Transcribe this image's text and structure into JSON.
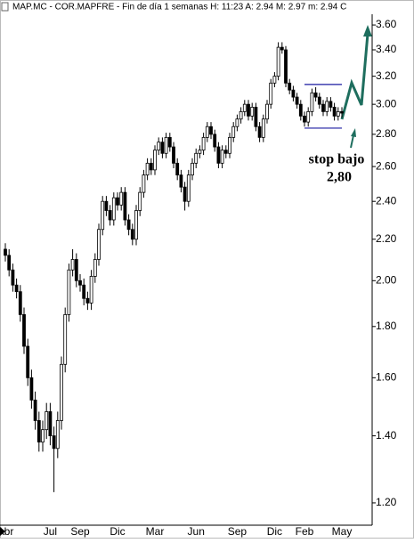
{
  "chart_data": {
    "type": "candlestick",
    "title": "MAP.MC - COR.MAPFRE - Fin de día 1 semanas  H: 11:23  A: 2.94  M: 2.97  m: 2.94  C",
    "log_scale": true,
    "grid": false,
    "ylim": [
      1.14,
      3.69
    ],
    "yticks": [
      {
        "value": 1.2,
        "label": "1.20"
      },
      {
        "value": 1.4,
        "label": "1.40"
      },
      {
        "value": 1.6,
        "label": "1.60"
      },
      {
        "value": 1.8,
        "label": "1.80"
      },
      {
        "value": 2.0,
        "label": "2.00"
      },
      {
        "value": 2.2,
        "label": "2.20"
      },
      {
        "value": 2.4,
        "label": "2.40"
      },
      {
        "value": 2.6,
        "label": "2.60"
      },
      {
        "value": 2.8,
        "label": "2.80"
      },
      {
        "value": 3.0,
        "label": "3.00"
      },
      {
        "value": 3.2,
        "label": "3.20"
      },
      {
        "value": 3.4,
        "label": "3.40"
      },
      {
        "value": 3.6,
        "label": "3.60"
      }
    ],
    "categories": [
      "Abr",
      null,
      null,
      null,
      null,
      null,
      null,
      null,
      null,
      null,
      null,
      null,
      "Jul",
      null,
      null,
      null,
      null,
      null,
      null,
      null,
      "Sep",
      null,
      null,
      null,
      null,
      null,
      null,
      null,
      null,
      null,
      "Dic",
      null,
      null,
      null,
      null,
      null,
      null,
      null,
      null,
      null,
      "Mar",
      null,
      null,
      null,
      null,
      null,
      null,
      null,
      null,
      null,
      null,
      "Jun",
      null,
      null,
      null,
      null,
      null,
      null,
      null,
      null,
      null,
      null,
      "Sep",
      null,
      null,
      null,
      null,
      null,
      null,
      null,
      null,
      null,
      "Dic",
      null,
      null,
      null,
      null,
      null,
      null,
      null,
      "Feb",
      null,
      null,
      null,
      null,
      null,
      null,
      null,
      null,
      null,
      "May"
    ],
    "open": [
      2.15,
      2.12,
      2.05,
      1.98,
      1.95,
      1.85,
      1.72,
      1.6,
      1.52,
      1.45,
      1.38,
      1.42,
      1.48,
      1.4,
      1.36,
      1.45,
      1.65,
      1.85,
      2.05,
      2.1,
      2.0,
      1.98,
      1.92,
      1.9,
      2.02,
      2.1,
      2.25,
      2.4,
      2.35,
      2.3,
      2.42,
      2.38,
      2.45,
      2.3,
      2.25,
      2.2,
      2.35,
      2.45,
      2.55,
      2.62,
      2.58,
      2.7,
      2.75,
      2.68,
      2.78,
      2.72,
      2.62,
      2.55,
      2.48,
      2.4,
      2.55,
      2.62,
      2.68,
      2.7,
      2.78,
      2.85,
      2.8,
      2.72,
      2.62,
      2.7,
      2.68,
      2.78,
      2.85,
      2.9,
      2.95,
      3.0,
      2.92,
      2.98,
      2.85,
      2.78,
      2.9,
      3.0,
      3.15,
      3.2,
      3.42,
      3.4,
      3.15,
      3.1,
      3.05,
      3.0,
      2.92,
      2.88,
      2.95,
      3.08,
      3.05,
      3.0,
      2.95,
      3.02,
      2.98,
      2.92,
      2.95
    ],
    "high": [
      2.18,
      2.15,
      2.08,
      2.01,
      1.98,
      1.88,
      1.75,
      1.63,
      1.55,
      1.48,
      1.45,
      1.51,
      1.51,
      1.43,
      1.48,
      1.68,
      1.88,
      2.08,
      2.15,
      2.13,
      2.03,
      2.01,
      1.95,
      2.05,
      2.13,
      2.28,
      2.43,
      2.43,
      2.38,
      2.45,
      2.45,
      2.48,
      2.48,
      2.33,
      2.28,
      2.38,
      2.48,
      2.58,
      2.65,
      2.65,
      2.73,
      2.78,
      2.78,
      2.81,
      2.81,
      2.75,
      2.65,
      2.58,
      2.51,
      2.58,
      2.65,
      2.71,
      2.73,
      2.81,
      2.88,
      2.88,
      2.83,
      2.75,
      2.73,
      2.73,
      2.81,
      2.88,
      2.93,
      2.98,
      3.03,
      3.03,
      3.01,
      3.01,
      2.88,
      2.93,
      3.03,
      3.18,
      3.23,
      3.46,
      3.46,
      3.43,
      3.18,
      3.13,
      3.08,
      3.03,
      2.95,
      2.98,
      3.11,
      3.12,
      3.08,
      3.03,
      3.05,
      3.05,
      3.01,
      2.98,
      2.98
    ],
    "low": [
      2.09,
      2.02,
      1.95,
      1.92,
      1.82,
      1.69,
      1.57,
      1.49,
      1.42,
      1.35,
      1.35,
      1.39,
      1.37,
      1.23,
      1.33,
      1.42,
      1.62,
      1.82,
      2.02,
      1.97,
      1.95,
      1.89,
      1.87,
      1.87,
      1.99,
      2.07,
      2.22,
      2.32,
      2.27,
      2.27,
      2.35,
      2.35,
      2.27,
      2.22,
      2.17,
      2.17,
      2.32,
      2.42,
      2.52,
      2.55,
      2.55,
      2.67,
      2.65,
      2.65,
      2.69,
      2.59,
      2.52,
      2.45,
      2.35,
      2.37,
      2.52,
      2.59,
      2.65,
      2.67,
      2.75,
      2.77,
      2.69,
      2.59,
      2.59,
      2.65,
      2.65,
      2.75,
      2.82,
      2.87,
      2.92,
      2.89,
      2.89,
      2.82,
      2.75,
      2.75,
      2.87,
      2.97,
      3.12,
      3.17,
      3.37,
      3.12,
      3.07,
      3.02,
      2.97,
      2.89,
      2.85,
      2.85,
      2.92,
      3.02,
      2.97,
      2.92,
      2.92,
      2.95,
      2.89,
      2.89,
      2.91
    ],
    "close": [
      2.12,
      2.05,
      1.98,
      1.95,
      1.85,
      1.72,
      1.6,
      1.52,
      1.45,
      1.38,
      1.42,
      1.48,
      1.4,
      1.36,
      1.45,
      1.65,
      1.85,
      2.05,
      2.1,
      2.0,
      1.98,
      1.92,
      1.9,
      2.02,
      2.1,
      2.25,
      2.4,
      2.35,
      2.3,
      2.42,
      2.38,
      2.45,
      2.3,
      2.25,
      2.2,
      2.35,
      2.45,
      2.55,
      2.62,
      2.58,
      2.7,
      2.75,
      2.68,
      2.78,
      2.72,
      2.62,
      2.55,
      2.48,
      2.4,
      2.55,
      2.62,
      2.68,
      2.7,
      2.78,
      2.85,
      2.8,
      2.72,
      2.62,
      2.7,
      2.68,
      2.78,
      2.85,
      2.9,
      2.95,
      3.0,
      2.92,
      2.98,
      2.85,
      2.78,
      2.9,
      3.0,
      3.15,
      3.2,
      3.42,
      3.4,
      3.15,
      3.1,
      3.05,
      3.0,
      2.92,
      2.88,
      2.95,
      3.08,
      3.05,
      3.0,
      2.95,
      3.02,
      2.98,
      2.92,
      2.95,
      2.94
    ],
    "up_color": "#ffffff",
    "down_color": "#000000",
    "hlines": [
      {
        "value": 3.14,
        "from": 80,
        "to": 90,
        "color": "#1a1aa0"
      },
      {
        "value": 2.84,
        "from": 80,
        "to": 90,
        "color": "#1a1aa0"
      }
    ],
    "annotations": [
      "stop bajo",
      "2,80"
    ]
  }
}
